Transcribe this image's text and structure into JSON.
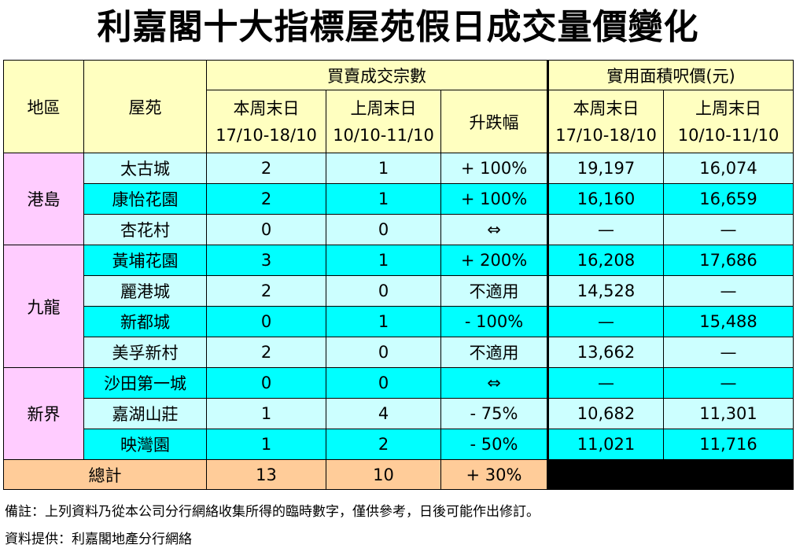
{
  "title": "利嘉閣十大指標屋苑假日成交量價變化",
  "headers": {
    "region": "地區",
    "estate": "屋苑",
    "transactions_group": "買賣成交宗數",
    "price_group": "實用面積呎價(元)",
    "this_weekend": "本周末日",
    "last_weekend": "上周末日",
    "this_period": "17/10-18/10",
    "last_period": "10/10-11/10",
    "change": "升跌幅"
  },
  "regions": [
    {
      "name": "港島",
      "rows": [
        {
          "estate": "太古城",
          "this_txn": "2",
          "last_txn": "1",
          "change": "+ 100%",
          "this_price": "19,197",
          "last_price": "16,074"
        },
        {
          "estate": "康怡花園",
          "this_txn": "2",
          "last_txn": "1",
          "change": "+ 100%",
          "this_price": "16,160",
          "last_price": "16,659"
        },
        {
          "estate": "杏花村",
          "this_txn": "0",
          "last_txn": "0",
          "change": "⇔",
          "this_price": "—",
          "last_price": "—"
        }
      ]
    },
    {
      "name": "九龍",
      "rows": [
        {
          "estate": "黃埔花園",
          "this_txn": "3",
          "last_txn": "1",
          "change": "+ 200%",
          "this_price": "16,208",
          "last_price": "17,686"
        },
        {
          "estate": "麗港城",
          "this_txn": "2",
          "last_txn": "0",
          "change": "不適用",
          "this_price": "14,528",
          "last_price": "—"
        },
        {
          "estate": "新都城",
          "this_txn": "0",
          "last_txn": "1",
          "change": "- 100%",
          "this_price": "—",
          "last_price": "15,488"
        },
        {
          "estate": "美孚新村",
          "this_txn": "2",
          "last_txn": "0",
          "change": "不適用",
          "this_price": "13,662",
          "last_price": "—"
        }
      ]
    },
    {
      "name": "新界",
      "rows": [
        {
          "estate": "沙田第一城",
          "this_txn": "0",
          "last_txn": "0",
          "change": "⇔",
          "this_price": "—",
          "last_price": "—"
        },
        {
          "estate": "嘉湖山莊",
          "this_txn": "1",
          "last_txn": "4",
          "change": "- 75%",
          "this_price": "10,682",
          "last_price": "11,301"
        },
        {
          "estate": "映灣園",
          "this_txn": "1",
          "last_txn": "2",
          "change": "- 50%",
          "this_price": "11,021",
          "last_price": "11,716"
        }
      ]
    }
  ],
  "total": {
    "label": "總計",
    "this_txn": "13",
    "last_txn": "10",
    "change": "+ 30%"
  },
  "notes": {
    "remark": "備註：上列資料乃從本公司分行網絡收集所得的臨時數字，僅供參考，日後可能作出修訂。",
    "source": "資料提供：利嘉閣地產分行網絡"
  },
  "colors": {
    "header": "#ffffc0",
    "region": "#ffccff",
    "row_light": "#ccffff",
    "row_cyan": "#00ffff",
    "total": "#ffcc99"
  }
}
